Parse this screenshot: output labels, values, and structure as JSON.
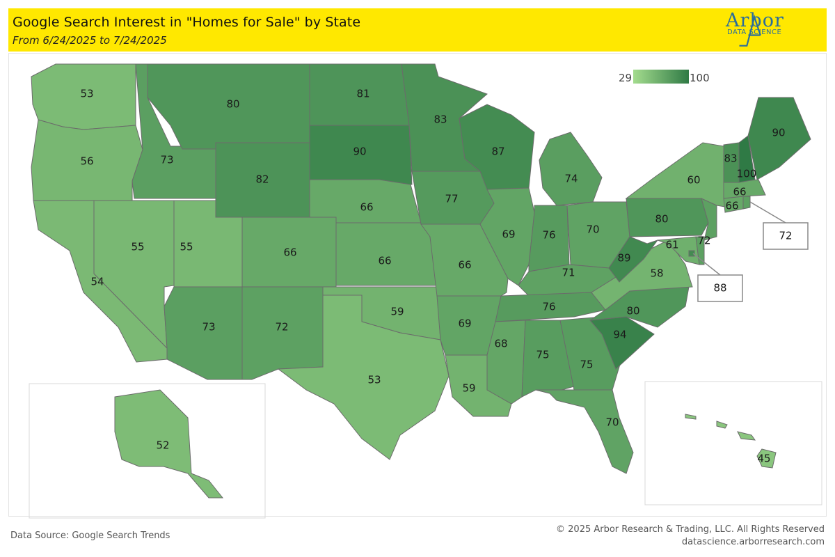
{
  "header": {
    "title": "Google Search Interest in \"Homes for Sale\" by State",
    "subtitle": "From 6/24/2025 to 7/24/2025"
  },
  "logo": {
    "name": "Arbor",
    "tagline": "DATA SCIENCE"
  },
  "legend": {
    "min": "29",
    "max": "100",
    "color_low": "#a4dc8e",
    "color_high": "#2f7a45"
  },
  "states": [
    {
      "code": "WA",
      "value": 53
    },
    {
      "code": "OR",
      "value": 56
    },
    {
      "code": "CA",
      "value": 54
    },
    {
      "code": "NV",
      "value": 55
    },
    {
      "code": "ID",
      "value": 73
    },
    {
      "code": "MT",
      "value": 80
    },
    {
      "code": "WY",
      "value": 82
    },
    {
      "code": "UT",
      "value": 55
    },
    {
      "code": "AZ",
      "value": 73
    },
    {
      "code": "CO",
      "value": 66
    },
    {
      "code": "NM",
      "value": 72
    },
    {
      "code": "ND",
      "value": 81
    },
    {
      "code": "SD",
      "value": 90
    },
    {
      "code": "NE",
      "value": 66
    },
    {
      "code": "KS",
      "value": 66
    },
    {
      "code": "OK",
      "value": 59
    },
    {
      "code": "TX",
      "value": 53
    },
    {
      "code": "MN",
      "value": 83
    },
    {
      "code": "IA",
      "value": 77
    },
    {
      "code": "MO",
      "value": 66
    },
    {
      "code": "AR",
      "value": 69
    },
    {
      "code": "LA",
      "value": 59
    },
    {
      "code": "WI",
      "value": 87
    },
    {
      "code": "IL",
      "value": 69
    },
    {
      "code": "MI",
      "value": 74
    },
    {
      "code": "IN",
      "value": 76
    },
    {
      "code": "OH",
      "value": 70
    },
    {
      "code": "KY",
      "value": 71
    },
    {
      "code": "TN",
      "value": 76
    },
    {
      "code": "MS",
      "value": 68
    },
    {
      "code": "AL",
      "value": 75
    },
    {
      "code": "GA",
      "value": 75
    },
    {
      "code": "FL",
      "value": 70
    },
    {
      "code": "SC",
      "value": 94
    },
    {
      "code": "NC",
      "value": 80
    },
    {
      "code": "VA",
      "value": 58
    },
    {
      "code": "WV",
      "value": 89
    },
    {
      "code": "MD",
      "value": 61
    },
    {
      "code": "DE",
      "value": 72
    },
    {
      "code": "PA",
      "value": 80
    },
    {
      "code": "NJ",
      "value": 72
    },
    {
      "code": "NY",
      "value": 60
    },
    {
      "code": "CT",
      "value": 66
    },
    {
      "code": "MA",
      "value": 66
    },
    {
      "code": "VT",
      "value": 83
    },
    {
      "code": "NH",
      "value": 100
    },
    {
      "code": "ME",
      "value": 90
    },
    {
      "code": "RI",
      "value": 72
    },
    {
      "code": "DC",
      "value": 88
    },
    {
      "code": "AK",
      "value": 52
    },
    {
      "code": "HI",
      "value": 45
    }
  ],
  "callouts": {
    "RI": "72",
    "DC": "88"
  },
  "footer": {
    "source": "Data Source: Google Search Trends",
    "copyright": "© 2025 Arbor Research & Trading, LLC. All Rights Reserved",
    "website": "datascience.arborresearch.com"
  }
}
